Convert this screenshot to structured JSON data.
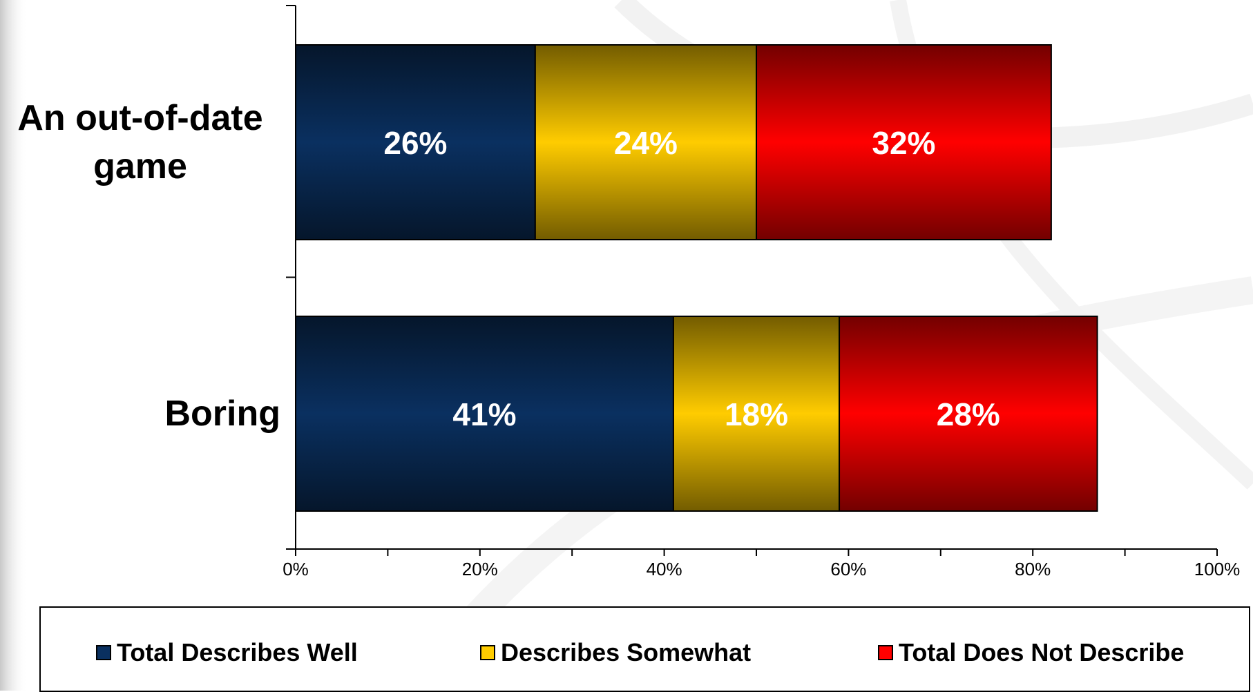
{
  "chart_data": {
    "type": "bar",
    "orientation": "horizontal",
    "stacked": true,
    "categories": [
      "An out-of-date game",
      "Boring"
    ],
    "category_lines": [
      [
        "An out-of-date",
        "game"
      ],
      [
        "Boring"
      ]
    ],
    "series": [
      {
        "name": "Total Describes Well",
        "values": [
          26,
          41
        ],
        "labels": [
          "26%",
          "41%"
        ],
        "color": "#0a3060"
      },
      {
        "name": "Describes Somewhat",
        "values": [
          24,
          18
        ],
        "labels": [
          "24%",
          "18%"
        ],
        "color": "#ffcc00"
      },
      {
        "name": "Total Does Not Describe",
        "values": [
          32,
          28
        ],
        "labels": [
          "32%",
          "28%"
        ],
        "color": "#ff0000"
      }
    ],
    "xlim": [
      0,
      100
    ],
    "x_ticks": [
      "0%",
      "20%",
      "40%",
      "60%",
      "80%",
      "100%"
    ],
    "legend_position": "bottom",
    "grid": false
  }
}
